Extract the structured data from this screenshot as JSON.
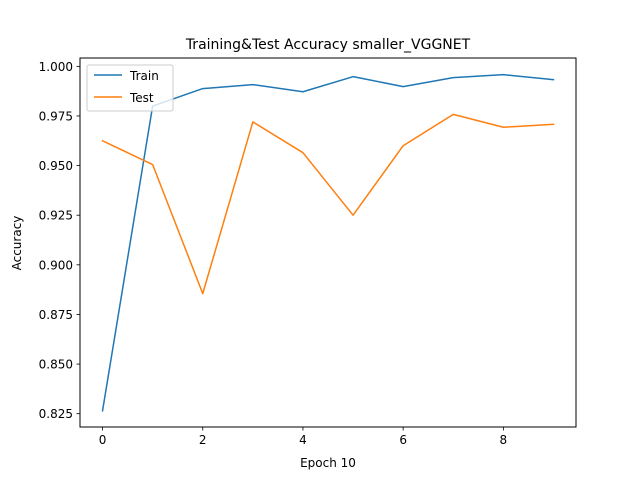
{
  "chart_data": {
    "type": "line",
    "title": "Training&Test Accuracy smaller_VGGNET",
    "xlabel": "Epoch 10",
    "ylabel": "Accuracy",
    "xlim": [
      -0.45,
      9.45
    ],
    "ylim": [
      0.8183,
      1.0042
    ],
    "xticks": [
      0,
      2,
      4,
      6,
      8
    ],
    "yticks": [
      0.825,
      0.85,
      0.875,
      0.9,
      0.925,
      0.95,
      0.975,
      1.0
    ],
    "x": [
      0,
      1,
      2,
      3,
      4,
      5,
      6,
      7,
      8,
      9
    ],
    "grid": false,
    "legend_position": "top-left",
    "series": [
      {
        "name": "Train",
        "color": "#1f77b4",
        "values": [
          0.8265,
          0.98,
          0.9888,
          0.9908,
          0.9872,
          0.9948,
          0.9898,
          0.9943,
          0.9958,
          0.9933
        ]
      },
      {
        "name": "Test",
        "color": "#ff7f0e",
        "values": [
          0.9625,
          0.9505,
          0.8855,
          0.972,
          0.9565,
          0.925,
          0.96,
          0.9758,
          0.9693,
          0.9708
        ]
      }
    ]
  }
}
